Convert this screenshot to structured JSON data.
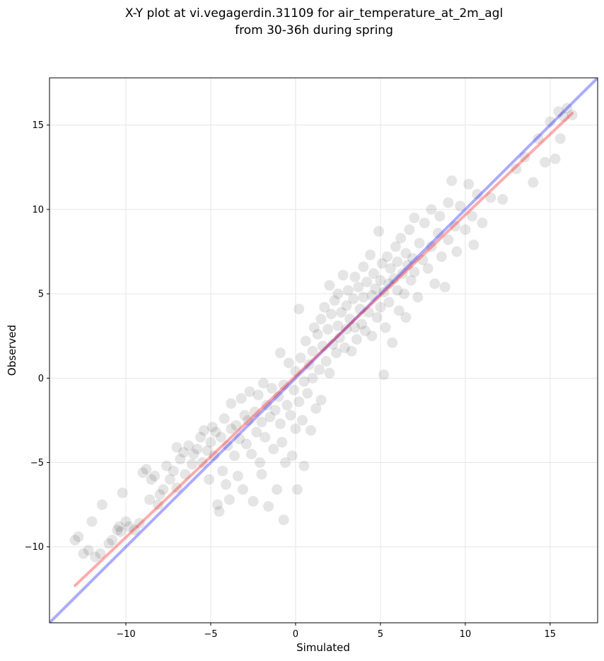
{
  "chart_data": {
    "type": "scatter",
    "title_line1": "X-Y plot at vi.vegagerdin.31109 for air_temperature_at_2m_agl",
    "title_line2": "from 30-36h during spring",
    "xlabel": "Simulated",
    "ylabel": "Observed",
    "xlim": [
      -14.5,
      17.8
    ],
    "ylim": [
      -14.5,
      17.8
    ],
    "x_ticks": [
      -10,
      -5,
      0,
      5,
      10,
      15
    ],
    "y_ticks": [
      -10,
      -5,
      0,
      5,
      10,
      15
    ],
    "x_tick_labels": [
      "−10",
      "−5",
      "0",
      "5",
      "10",
      "15"
    ],
    "y_tick_labels": [
      "−10",
      "−5",
      "0",
      "5",
      "10",
      "15"
    ],
    "grid": true,
    "point_color": "#000000",
    "point_opacity": 0.1,
    "regression_line": {
      "color": "#ff0000",
      "from": [
        -13.0,
        -12.3
      ],
      "to": [
        16.3,
        15.7
      ]
    },
    "identity_line": {
      "color": "#0000ff",
      "from": [
        -14.5,
        -14.5
      ],
      "to": [
        17.8,
        17.8
      ]
    },
    "series": [
      {
        "points": [
          [
            -13.0,
            -9.6
          ],
          [
            -12.8,
            -9.4
          ],
          [
            -12.5,
            -10.4
          ],
          [
            -12.2,
            -10.2
          ],
          [
            -12.0,
            -8.5
          ],
          [
            -11.8,
            -10.6
          ],
          [
            -11.5,
            -10.4
          ],
          [
            -11.4,
            -7.5
          ],
          [
            -11.0,
            -9.8
          ],
          [
            -10.8,
            -9.6
          ],
          [
            -10.5,
            -9.0
          ],
          [
            -10.4,
            -8.8
          ],
          [
            -10.3,
            -9.1
          ],
          [
            -10.2,
            -6.8
          ],
          [
            -10.0,
            -8.5
          ],
          [
            -9.8,
            -8.8
          ],
          [
            -9.5,
            -9.0
          ],
          [
            -9.2,
            -8.6
          ],
          [
            -9.0,
            -5.6
          ],
          [
            -8.8,
            -5.4
          ],
          [
            -8.6,
            -7.2
          ],
          [
            -8.5,
            -6.0
          ],
          [
            -8.3,
            -5.8
          ],
          [
            -8.1,
            -7.5
          ],
          [
            -8.0,
            -6.9
          ],
          [
            -7.8,
            -6.6
          ],
          [
            -7.6,
            -5.2
          ],
          [
            -7.4,
            -6.0
          ],
          [
            -7.2,
            -5.5
          ],
          [
            -7.0,
            -6.5
          ],
          [
            -7.0,
            -4.1
          ],
          [
            -6.8,
            -4.8
          ],
          [
            -6.6,
            -4.4
          ],
          [
            -6.5,
            -5.7
          ],
          [
            -6.3,
            -4.0
          ],
          [
            -6.1,
            -5.1
          ],
          [
            -6.0,
            -4.5
          ],
          [
            -5.8,
            -4.2
          ],
          [
            -5.6,
            -3.5
          ],
          [
            -5.5,
            -5.0
          ],
          [
            -5.4,
            -3.1
          ],
          [
            -5.2,
            -4.3
          ],
          [
            -5.1,
            -6.0
          ],
          [
            -5.0,
            -3.8
          ],
          [
            -4.9,
            -2.9
          ],
          [
            -4.8,
            -4.6
          ],
          [
            -4.7,
            -3.2
          ],
          [
            -4.6,
            -7.5
          ],
          [
            -4.5,
            -7.9
          ],
          [
            -4.4,
            -3.5
          ],
          [
            -4.3,
            -5.5
          ],
          [
            -4.2,
            -2.4
          ],
          [
            -4.1,
            -6.3
          ],
          [
            -4.0,
            -4.0
          ],
          [
            -3.9,
            -7.2
          ],
          [
            -3.8,
            -3.0
          ],
          [
            -3.8,
            -1.5
          ],
          [
            -3.6,
            -4.6
          ],
          [
            -3.5,
            -2.8
          ],
          [
            -3.4,
            -5.8
          ],
          [
            -3.3,
            -3.6
          ],
          [
            -3.2,
            -1.2
          ],
          [
            -3.1,
            -6.6
          ],
          [
            -3.0,
            -2.2
          ],
          [
            -2.9,
            -3.9
          ],
          [
            -2.8,
            -2.5
          ],
          [
            -2.7,
            -0.8
          ],
          [
            -2.6,
            -4.5
          ],
          [
            -2.5,
            -7.3
          ],
          [
            -2.4,
            -2.0
          ],
          [
            -2.3,
            -3.2
          ],
          [
            -2.2,
            -1.0
          ],
          [
            -2.1,
            -5.0
          ],
          [
            -2.0,
            -2.6
          ],
          [
            -2.0,
            -5.7
          ],
          [
            -1.9,
            -0.3
          ],
          [
            -1.8,
            -3.5
          ],
          [
            -1.7,
            -1.6
          ],
          [
            -1.6,
            -7.6
          ],
          [
            -1.5,
            -2.3
          ],
          [
            -1.4,
            -0.6
          ],
          [
            -1.3,
            -4.2
          ],
          [
            -1.2,
            -1.9
          ],
          [
            -1.1,
            -6.6
          ],
          [
            -1.0,
            -1.1
          ],
          [
            -0.9,
            -2.7
          ],
          [
            -0.9,
            1.5
          ],
          [
            -0.8,
            -3.8
          ],
          [
            -0.7,
            -0.4
          ],
          [
            -0.7,
            -8.4
          ],
          [
            -0.6,
            -5.0
          ],
          [
            -0.5,
            -1.6
          ],
          [
            -0.4,
            0.9
          ],
          [
            -0.3,
            -2.2
          ],
          [
            -0.2,
            -4.6
          ],
          [
            -0.1,
            -0.7
          ],
          [
            0.0,
            0.4
          ],
          [
            0.0,
            -3.0
          ],
          [
            0.1,
            -6.6
          ],
          [
            0.2,
            -1.4
          ],
          [
            0.2,
            4.1
          ],
          [
            0.3,
            1.2
          ],
          [
            0.4,
            -2.5
          ],
          [
            0.5,
            -0.2
          ],
          [
            0.5,
            -5.2
          ],
          [
            0.6,
            2.2
          ],
          [
            0.7,
            -0.9
          ],
          [
            0.8,
            0.8
          ],
          [
            0.9,
            -3.1
          ],
          [
            1.0,
            1.6
          ],
          [
            1.0,
            0.0
          ],
          [
            1.1,
            3.0
          ],
          [
            1.2,
            -1.8
          ],
          [
            1.3,
            2.6
          ],
          [
            1.4,
            0.5
          ],
          [
            1.5,
            3.5
          ],
          [
            1.5,
            -1.3
          ],
          [
            1.6,
            1.9
          ],
          [
            1.7,
            4.2
          ],
          [
            1.8,
            1.0
          ],
          [
            1.9,
            2.9
          ],
          [
            2.0,
            5.5
          ],
          [
            2.0,
            0.3
          ],
          [
            2.1,
            3.8
          ],
          [
            2.2,
            2.0
          ],
          [
            2.3,
            4.6
          ],
          [
            2.4,
            1.5
          ],
          [
            2.5,
            3.1
          ],
          [
            2.5,
            5.0
          ],
          [
            2.6,
            2.4
          ],
          [
            2.7,
            3.9
          ],
          [
            2.8,
            6.1
          ],
          [
            2.9,
            1.8
          ],
          [
            3.0,
            4.3
          ],
          [
            3.0,
            2.9
          ],
          [
            3.1,
            5.2
          ],
          [
            3.2,
            3.5
          ],
          [
            3.3,
            1.6
          ],
          [
            3.4,
            4.7
          ],
          [
            3.5,
            3.0
          ],
          [
            3.5,
            6.0
          ],
          [
            3.6,
            2.3
          ],
          [
            3.7,
            5.4
          ],
          [
            3.8,
            4.1
          ],
          [
            3.9,
            3.2
          ],
          [
            4.0,
            6.6
          ],
          [
            4.0,
            4.8
          ],
          [
            4.1,
            2.8
          ],
          [
            4.2,
            5.7
          ],
          [
            4.3,
            3.9
          ],
          [
            4.4,
            7.3
          ],
          [
            4.5,
            4.9
          ],
          [
            4.5,
            2.5
          ],
          [
            4.6,
            6.2
          ],
          [
            4.7,
            5.3
          ],
          [
            4.8,
            3.6
          ],
          [
            4.9,
            8.7
          ],
          [
            5.0,
            5.8
          ],
          [
            5.0,
            4.2
          ],
          [
            5.1,
            6.8
          ],
          [
            5.2,
            0.2
          ],
          [
            5.2,
            5.1
          ],
          [
            5.3,
            3.0
          ],
          [
            5.4,
            7.2
          ],
          [
            5.5,
            5.6
          ],
          [
            5.5,
            4.5
          ],
          [
            5.6,
            6.5
          ],
          [
            5.7,
            2.1
          ],
          [
            5.8,
            5.9
          ],
          [
            5.9,
            7.8
          ],
          [
            6.0,
            5.2
          ],
          [
            6.0,
            6.9
          ],
          [
            6.1,
            4.0
          ],
          [
            6.2,
            8.3
          ],
          [
            6.3,
            6.2
          ],
          [
            6.4,
            5.0
          ],
          [
            6.5,
            7.4
          ],
          [
            6.5,
            3.6
          ],
          [
            6.6,
            6.7
          ],
          [
            6.7,
            8.8
          ],
          [
            6.8,
            5.8
          ],
          [
            6.9,
            7.1
          ],
          [
            7.0,
            9.5
          ],
          [
            7.0,
            6.3
          ],
          [
            7.2,
            4.8
          ],
          [
            7.3,
            8.0
          ],
          [
            7.5,
            7.0
          ],
          [
            7.6,
            9.2
          ],
          [
            7.8,
            6.5
          ],
          [
            8.0,
            10.0
          ],
          [
            8.0,
            7.8
          ],
          [
            8.2,
            5.6
          ],
          [
            8.4,
            8.6
          ],
          [
            8.5,
            9.6
          ],
          [
            8.6,
            7.2
          ],
          [
            8.8,
            5.4
          ],
          [
            9.0,
            10.4
          ],
          [
            9.0,
            8.2
          ],
          [
            9.2,
            11.7
          ],
          [
            9.4,
            9.0
          ],
          [
            9.5,
            7.5
          ],
          [
            9.7,
            10.2
          ],
          [
            10.0,
            8.8
          ],
          [
            10.2,
            11.5
          ],
          [
            10.4,
            9.6
          ],
          [
            10.5,
            7.9
          ],
          [
            10.7,
            10.9
          ],
          [
            11.0,
            9.2
          ],
          [
            11.5,
            10.7
          ],
          [
            12.2,
            10.6
          ],
          [
            13.0,
            12.4
          ],
          [
            13.5,
            13.1
          ],
          [
            14.0,
            11.6
          ],
          [
            14.3,
            14.2
          ],
          [
            14.7,
            12.8
          ],
          [
            15.0,
            15.2
          ],
          [
            15.3,
            13.0
          ],
          [
            15.5,
            15.8
          ],
          [
            15.6,
            14.2
          ],
          [
            15.8,
            15.5
          ],
          [
            16.0,
            16.0
          ],
          [
            16.3,
            15.6
          ]
        ]
      }
    ]
  }
}
